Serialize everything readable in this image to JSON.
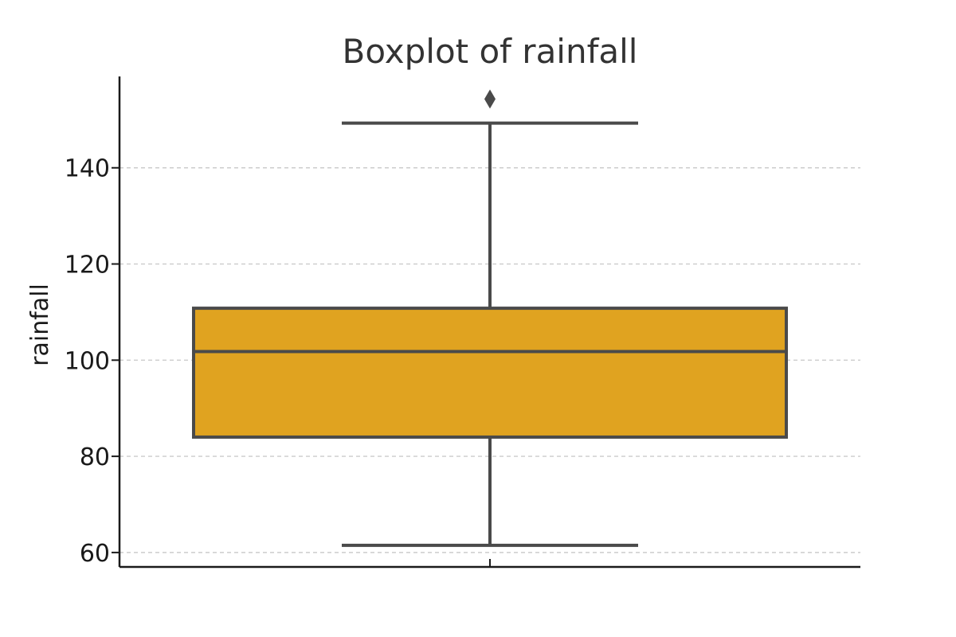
{
  "chart_data": {
    "type": "box",
    "title": "Boxplot of rainfall",
    "xlabel": "",
    "ylabel": "rainfall",
    "ylim": [
      57,
      159
    ],
    "yticks": [
      60,
      80,
      100,
      120,
      140
    ],
    "grid": {
      "y": true,
      "x": false,
      "style": "dashed"
    },
    "series": [
      {
        "whisker_low": 61.5,
        "q1": 84,
        "median": 101.8,
        "q3": 110.8,
        "whisker_high": 149.3,
        "outliers": [
          154.3
        ],
        "color": "#E0A320"
      }
    ]
  },
  "colors": {
    "box_fill": "#E0A320",
    "box_edge": "#4a4a4a",
    "grid": "#cccccc",
    "text": "#1a1a1a"
  }
}
